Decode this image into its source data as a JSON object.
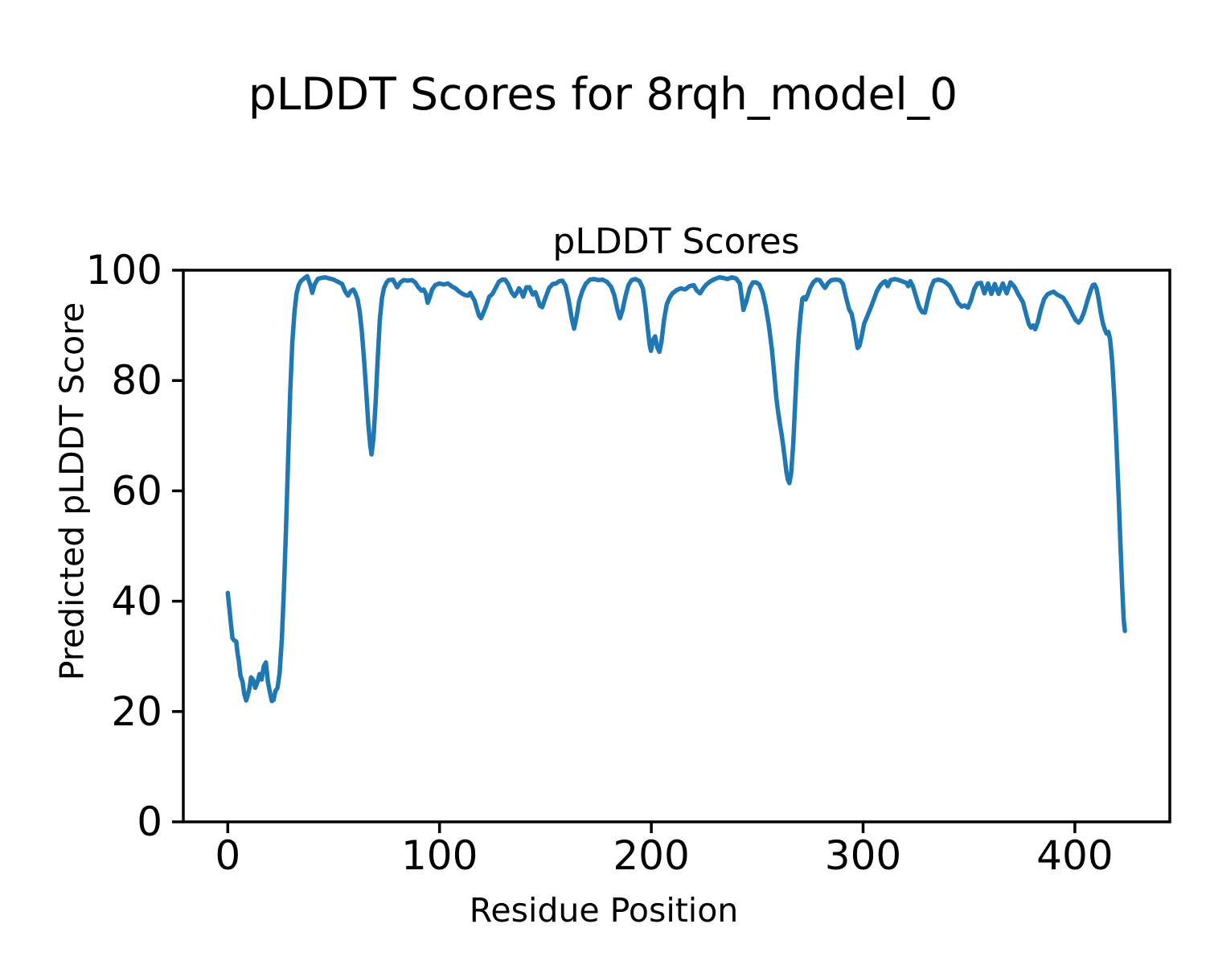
{
  "figure": {
    "background": "#ffffff",
    "frame_color": "#000000",
    "tick_color": "#000000"
  },
  "chart_data": {
    "type": "line",
    "suptitle": "pLDDT Scores for 8rqh_model_0",
    "title": "pLDDT Scores",
    "xlabel": "Residue Position",
    "ylabel": "Predicted pLDDT Score",
    "xlim": [
      -21,
      445
    ],
    "ylim": [
      0,
      100
    ],
    "xticks": [
      0,
      100,
      200,
      300,
      400
    ],
    "yticks": [
      0,
      20,
      40,
      60,
      80,
      100
    ],
    "grid": false,
    "legend": null,
    "series": [
      {
        "name": "pLDDT",
        "color": "#1f77b4",
        "linewidth": 5.5,
        "points": [
          [
            0,
            41.5
          ],
          [
            0.8,
            38.5
          ],
          [
            1.5,
            35.8
          ],
          [
            2.2,
            33.3
          ],
          [
            3,
            32.9
          ],
          [
            4,
            32.7
          ],
          [
            4.6,
            30.6
          ],
          [
            5.2,
            29.2
          ],
          [
            6,
            26.5
          ],
          [
            7,
            25.4
          ],
          [
            7.8,
            23.2
          ],
          [
            8.7,
            22
          ],
          [
            9.5,
            23
          ],
          [
            10.3,
            24.3
          ],
          [
            11,
            26.2
          ],
          [
            12,
            25.7
          ],
          [
            13,
            24.3
          ],
          [
            14,
            25.3
          ],
          [
            15,
            26.8
          ],
          [
            16,
            25.8
          ],
          [
            17,
            28.2
          ],
          [
            18,
            28.9
          ],
          [
            19,
            25.3
          ],
          [
            20,
            23.3
          ],
          [
            20.8,
            21.9
          ],
          [
            21.6,
            22.1
          ],
          [
            22.5,
            23.7
          ],
          [
            23.5,
            24.3
          ],
          [
            24.5,
            27
          ],
          [
            25.5,
            33
          ],
          [
            26.5,
            42
          ],
          [
            27.5,
            53
          ],
          [
            28.5,
            66
          ],
          [
            29.5,
            78
          ],
          [
            30.5,
            87
          ],
          [
            31.5,
            92.5
          ],
          [
            32.5,
            95.8
          ],
          [
            33.5,
            97.3
          ],
          [
            34.5,
            98
          ],
          [
            36,
            98.5
          ],
          [
            37.5,
            98.9
          ],
          [
            39,
            97.3
          ],
          [
            39.9,
            95.9
          ],
          [
            41,
            97.4
          ],
          [
            42.5,
            98.4
          ],
          [
            44,
            98.6
          ],
          [
            46,
            98.7
          ],
          [
            48,
            98.5
          ],
          [
            50,
            98.3
          ],
          [
            52,
            97.9
          ],
          [
            54,
            97.5
          ],
          [
            55.5,
            96.1
          ],
          [
            56.8,
            95.4
          ],
          [
            58,
            96.2
          ],
          [
            59.3,
            96.5
          ],
          [
            60.3,
            95.8
          ],
          [
            61.3,
            94.7
          ],
          [
            62.3,
            92.5
          ],
          [
            63.3,
            89
          ],
          [
            64.3,
            84
          ],
          [
            65.3,
            78.5
          ],
          [
            66.3,
            72.5
          ],
          [
            67.2,
            68.5
          ],
          [
            67.9,
            66.6
          ],
          [
            68.8,
            69.5
          ],
          [
            69.8,
            76
          ],
          [
            70.8,
            84
          ],
          [
            71.8,
            91
          ],
          [
            72.8,
            95
          ],
          [
            73.8,
            96.8
          ],
          [
            75,
            97.8
          ],
          [
            76,
            98.2
          ],
          [
            78,
            98.3
          ],
          [
            80,
            96.9
          ],
          [
            81.5,
            97.8
          ],
          [
            83,
            98.2
          ],
          [
            85,
            98.1
          ],
          [
            87,
            98.2
          ],
          [
            88.5,
            97.8
          ],
          [
            90,
            96.9
          ],
          [
            91.5,
            96.3
          ],
          [
            92.5,
            96.5
          ],
          [
            93.5,
            95.8
          ],
          [
            94.4,
            94.1
          ],
          [
            95.3,
            95
          ],
          [
            96.5,
            96.5
          ],
          [
            98,
            97.3
          ],
          [
            100,
            97.6
          ],
          [
            102,
            97.4
          ],
          [
            104,
            97.6
          ],
          [
            106,
            97
          ],
          [
            107.5,
            96.7
          ],
          [
            109,
            96.2
          ],
          [
            110.5,
            95.8
          ],
          [
            112,
            95.5
          ],
          [
            113.5,
            95.4
          ],
          [
            114.5,
            95.9
          ],
          [
            115.5,
            95.2
          ],
          [
            116.5,
            94.5
          ],
          [
            117.5,
            93.2
          ],
          [
            118.6,
            91.8
          ],
          [
            119.6,
            91.3
          ],
          [
            120.6,
            92.2
          ],
          [
            122,
            93.5
          ],
          [
            123.5,
            95.2
          ],
          [
            125,
            95.7
          ],
          [
            126.5,
            96.8
          ],
          [
            128,
            97.9
          ],
          [
            129.5,
            98.3
          ],
          [
            131,
            98.3
          ],
          [
            132.5,
            97.4
          ],
          [
            134,
            96
          ],
          [
            135.4,
            95.3
          ],
          [
            136.5,
            95.9
          ],
          [
            137.5,
            96.7
          ],
          [
            138.5,
            96.2
          ],
          [
            139.5,
            95.2
          ],
          [
            141,
            96.9
          ],
          [
            142.5,
            96.9
          ],
          [
            144,
            95.6
          ],
          [
            145.2,
            96
          ],
          [
            146.2,
            95
          ],
          [
            147.3,
            93.6
          ],
          [
            148.5,
            93.3
          ],
          [
            150,
            95
          ],
          [
            151.8,
            96.8
          ],
          [
            153.5,
            97.5
          ],
          [
            155,
            97.6
          ],
          [
            156.5,
            98
          ],
          [
            158,
            98.1
          ],
          [
            159.5,
            97.2
          ],
          [
            161,
            94.5
          ],
          [
            162.3,
            91.5
          ],
          [
            163.5,
            89.4
          ],
          [
            164.7,
            91.5
          ],
          [
            166,
            94.5
          ],
          [
            167.5,
            96.3
          ],
          [
            169,
            97.5
          ],
          [
            171,
            98.3
          ],
          [
            173,
            98.4
          ],
          [
            175,
            98.2
          ],
          [
            177,
            98.3
          ],
          [
            179,
            97.9
          ],
          [
            181,
            97
          ],
          [
            182.5,
            95.5
          ],
          [
            184,
            92.8
          ],
          [
            185.2,
            91.3
          ],
          [
            186.4,
            92.8
          ],
          [
            187.8,
            95.3
          ],
          [
            189.2,
            97.3
          ],
          [
            190.7,
            98.2
          ],
          [
            192.5,
            98.4
          ],
          [
            194.5,
            98
          ],
          [
            196,
            96.7
          ],
          [
            197.2,
            93.5
          ],
          [
            198.3,
            89.5
          ],
          [
            199.2,
            86.5
          ],
          [
            199.8,
            85.4
          ],
          [
            200.8,
            87.3
          ],
          [
            201.8,
            88
          ],
          [
            202.8,
            86
          ],
          [
            203.8,
            85.2
          ],
          [
            204.8,
            87
          ],
          [
            206,
            91
          ],
          [
            207.3,
            93.8
          ],
          [
            208.6,
            95
          ],
          [
            210,
            95.8
          ],
          [
            212,
            96.4
          ],
          [
            214,
            96.7
          ],
          [
            216,
            96.5
          ],
          [
            218,
            97.1
          ],
          [
            220,
            97.3
          ],
          [
            221.5,
            96.3
          ],
          [
            223,
            95.8
          ],
          [
            224.5,
            96.7
          ],
          [
            226,
            97.4
          ],
          [
            228,
            98
          ],
          [
            230,
            98.4
          ],
          [
            232,
            98.7
          ],
          [
            234,
            98.6
          ],
          [
            236,
            98.4
          ],
          [
            238,
            98.7
          ],
          [
            240,
            98.5
          ],
          [
            241.8,
            97.6
          ],
          [
            243.5,
            92.8
          ],
          [
            245,
            94.5
          ],
          [
            246.5,
            96.8
          ],
          [
            248,
            97.8
          ],
          [
            249.5,
            97.8
          ],
          [
            251,
            97.4
          ],
          [
            252.5,
            96
          ],
          [
            254,
            93.5
          ],
          [
            255.5,
            90
          ],
          [
            257,
            85.5
          ],
          [
            258.2,
            80.5
          ],
          [
            259,
            77
          ],
          [
            259.8,
            74.5
          ],
          [
            260.8,
            72
          ],
          [
            261.5,
            70.3
          ],
          [
            262.3,
            68.1
          ],
          [
            263,
            66
          ],
          [
            263.8,
            63.5
          ],
          [
            264.5,
            62
          ],
          [
            265.2,
            61.4
          ],
          [
            266,
            63
          ],
          [
            267,
            68.5
          ],
          [
            268,
            76.5
          ],
          [
            268.8,
            83
          ],
          [
            269.6,
            88
          ],
          [
            270.5,
            92
          ],
          [
            271.3,
            94.8
          ],
          [
            272.1,
            95.1
          ],
          [
            272.9,
            94.7
          ],
          [
            273.8,
            95.5
          ],
          [
            275,
            96.8
          ],
          [
            276.5,
            97.8
          ],
          [
            278,
            98.3
          ],
          [
            279.5,
            98.2
          ],
          [
            281,
            97.3
          ],
          [
            282,
            96.8
          ],
          [
            283.5,
            97.7
          ],
          [
            285,
            98.2
          ],
          [
            287,
            98.3
          ],
          [
            289,
            98.2
          ],
          [
            290.5,
            97.5
          ],
          [
            292,
            95
          ],
          [
            293.5,
            92.8
          ],
          [
            294.5,
            92.2
          ],
          [
            295.5,
            90.5
          ],
          [
            296.5,
            88
          ],
          [
            297.4,
            85.9
          ],
          [
            298.3,
            86.3
          ],
          [
            299.3,
            88
          ],
          [
            300.5,
            90.3
          ],
          [
            302,
            91.7
          ],
          [
            303.5,
            93.1
          ],
          [
            305,
            94.6
          ],
          [
            306.5,
            96.2
          ],
          [
            308,
            97.2
          ],
          [
            309.5,
            97.8
          ],
          [
            310.5,
            98
          ],
          [
            311.6,
            97.1
          ],
          [
            313,
            98.2
          ],
          [
            315,
            98.4
          ],
          [
            317,
            98.2
          ],
          [
            319,
            97.9
          ],
          [
            320.5,
            97.7
          ],
          [
            321.3,
            97.1
          ],
          [
            322.3,
            98
          ],
          [
            323.6,
            97
          ],
          [
            325,
            95.2
          ],
          [
            326.5,
            93.3
          ],
          [
            327.9,
            92.4
          ],
          [
            329.2,
            92.3
          ],
          [
            330.5,
            94.5
          ],
          [
            332,
            96.8
          ],
          [
            333.5,
            98.1
          ],
          [
            335.5,
            98.3
          ],
          [
            337.5,
            98.1
          ],
          [
            339,
            97.8
          ],
          [
            341,
            97.1
          ],
          [
            343,
            95.6
          ],
          [
            344.8,
            94.1
          ],
          [
            346.5,
            93.4
          ],
          [
            348,
            93.6
          ],
          [
            349.5,
            93.2
          ],
          [
            351,
            94.6
          ],
          [
            352.5,
            96.6
          ],
          [
            354,
            97.6
          ],
          [
            355.7,
            97.7
          ],
          [
            357.3,
            95.8
          ],
          [
            359,
            97.6
          ],
          [
            360.6,
            95.7
          ],
          [
            362.2,
            97.5
          ],
          [
            364,
            95.7
          ],
          [
            366,
            97.6
          ],
          [
            367.8,
            95.8
          ],
          [
            369.6,
            97.8
          ],
          [
            371.5,
            97
          ],
          [
            373.5,
            95.5
          ],
          [
            375.5,
            94.2
          ],
          [
            377,
            92
          ],
          [
            378.3,
            90.2
          ],
          [
            379.3,
            89.6
          ],
          [
            380.3,
            90
          ],
          [
            381.3,
            89.3
          ],
          [
            382.5,
            90.6
          ],
          [
            384,
            93
          ],
          [
            385.5,
            94.8
          ],
          [
            387,
            95.6
          ],
          [
            388.5,
            95.9
          ],
          [
            390,
            96.1
          ],
          [
            391.5,
            95.6
          ],
          [
            393,
            95.3
          ],
          [
            394.5,
            95
          ],
          [
            396,
            94.1
          ],
          [
            397.5,
            93.1
          ],
          [
            399,
            91.9
          ],
          [
            400.5,
            90.9
          ],
          [
            401.8,
            90.5
          ],
          [
            403,
            91.1
          ],
          [
            404.5,
            92.6
          ],
          [
            406,
            94.6
          ],
          [
            407.5,
            96.4
          ],
          [
            408.5,
            97.3
          ],
          [
            409.3,
            97.4
          ],
          [
            410.2,
            96.7
          ],
          [
            411.2,
            94.8
          ],
          [
            412.2,
            92.4
          ],
          [
            413.2,
            90.4
          ],
          [
            414.2,
            89.2
          ],
          [
            415,
            88.5
          ],
          [
            415.8,
            88.8
          ],
          [
            416.6,
            87.6
          ],
          [
            417.6,
            83.5
          ],
          [
            418.6,
            77
          ],
          [
            419.6,
            69
          ],
          [
            420.6,
            59.5
          ],
          [
            421.6,
            49.5
          ],
          [
            422.4,
            42
          ],
          [
            423.1,
            36.5
          ],
          [
            423.6,
            34.6
          ]
        ]
      }
    ]
  }
}
